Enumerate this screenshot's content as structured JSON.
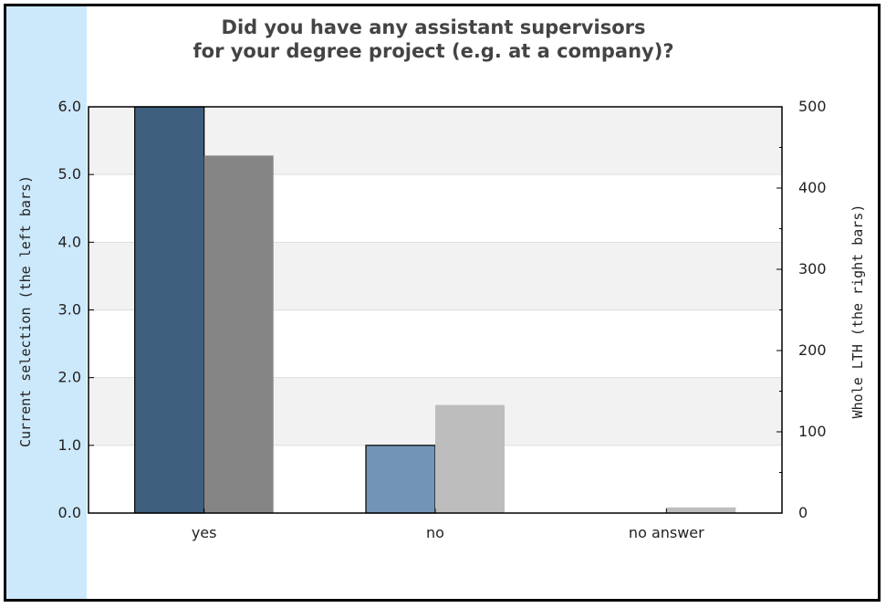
{
  "chart_data": {
    "type": "bar",
    "title_lines": [
      "Did you have any assistant supervisors",
      "for your degree project (e.g. at a company)?"
    ],
    "categories": [
      "yes",
      "no",
      "no answer"
    ],
    "ylabel_left": "Current selection (the left bars)",
    "ylabel_right": "Whole LTH (the right bars)",
    "ylim_left": [
      0,
      6
    ],
    "ylim_right": [
      0,
      500
    ],
    "yticks_left": [
      "0.0",
      "1.0",
      "2.0",
      "3.0",
      "4.0",
      "5.0",
      "6.0"
    ],
    "yticks_right": [
      "0",
      "100",
      "200",
      "300",
      "400",
      "500"
    ],
    "series": [
      {
        "axis": "left",
        "values": [
          6,
          1,
          0
        ],
        "colors": [
          "#3e5f7e",
          "#7395b5",
          "#7395b5"
        ]
      },
      {
        "axis": "right",
        "values": [
          440,
          133,
          7
        ],
        "colors": [
          "#858585",
          "#bdbdbd",
          "#bdbdbd"
        ]
      }
    ],
    "grid": true,
    "band_colors": [
      "#f2f2f2",
      "#ffffff"
    ]
  }
}
